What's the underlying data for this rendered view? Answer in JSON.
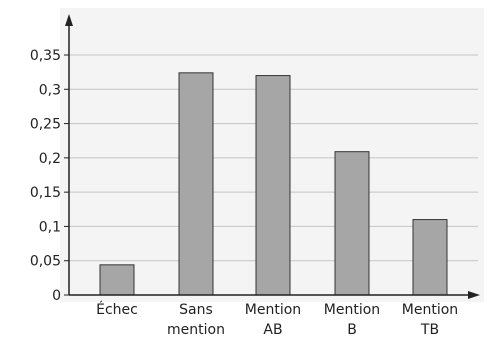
{
  "chart_data": {
    "type": "bar",
    "title": "",
    "xlabel": "",
    "ylabel": "",
    "categories": [
      [
        "Échec"
      ],
      [
        "Sans",
        "mention"
      ],
      [
        "Mention",
        "AB"
      ],
      [
        "Mention",
        "B"
      ],
      [
        "Mention",
        "TB"
      ]
    ],
    "values": [
      0.044,
      0.324,
      0.32,
      0.209,
      0.11
    ],
    "ylim": [
      0,
      0.35
    ],
    "yticks": [
      0,
      0.05,
      0.1,
      0.15,
      0.2,
      0.25,
      0.3,
      0.35
    ],
    "ytick_labels": [
      "0",
      "0,05",
      "0,1",
      "0,15",
      "0,2",
      "0,25",
      "0,3",
      "0,35"
    ],
    "grid": "horizontal",
    "colors": {
      "background": "#f4f4f4",
      "bar_fill": "#a6a6a6",
      "bar_stroke": "#333333",
      "grid": "#c4c4c4",
      "axis": "#222222"
    }
  }
}
